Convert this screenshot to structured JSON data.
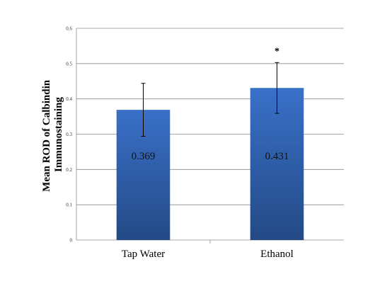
{
  "chart_data": {
    "type": "bar",
    "categories": [
      "Tap Water",
      "Ethanol"
    ],
    "values": [
      0.369,
      0.431
    ],
    "errors": [
      0.075,
      0.072
    ],
    "data_labels": [
      "0.369",
      "0.431"
    ],
    "annotations": [
      "",
      "*"
    ],
    "ylabel_lines": [
      "Mean ROD of Calbindin",
      "Immunostaining"
    ],
    "xlabel": "",
    "ylim": [
      0,
      0.6
    ],
    "yticks": [
      0,
      0.1,
      0.2,
      0.3,
      0.4,
      0.5,
      0.6
    ],
    "ytick_labels": [
      "0",
      "0.1",
      "0.2",
      "0.3",
      "0.4",
      "0.5",
      "0.6"
    ],
    "grid": true,
    "bar_color_top": "#3a70c8",
    "bar_color_bottom": "#234a86"
  }
}
